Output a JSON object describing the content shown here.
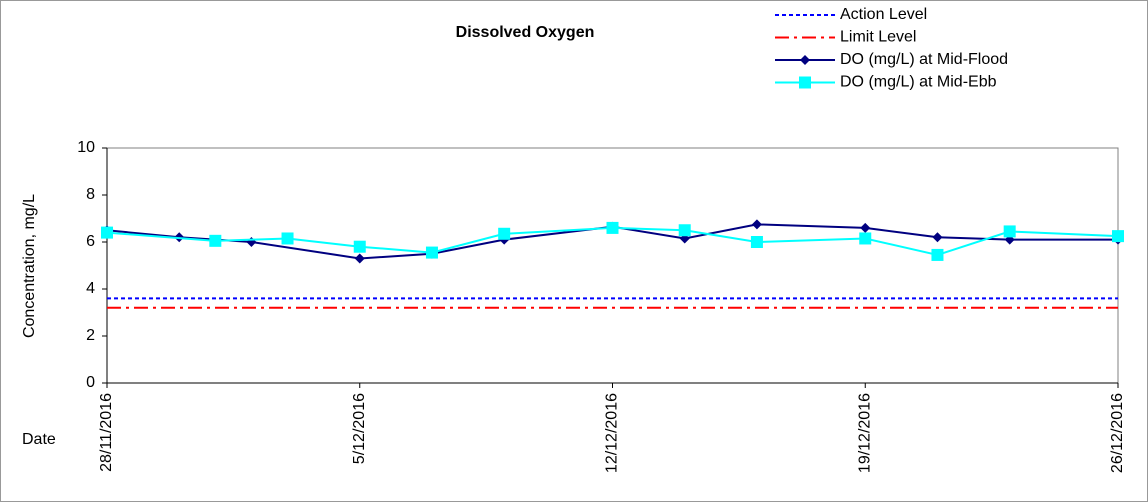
{
  "chart_data": {
    "type": "line",
    "title": "Dissolved Oxygen",
    "y_label": "Concentration, mg/L",
    "x_label": "Date",
    "xlim": [
      "28/11/2016",
      "26/12/2016"
    ],
    "xticks": [
      "28/11/2016",
      "5/12/2016",
      "12/12/2016",
      "19/12/2016",
      "26/12/2016"
    ],
    "ylim": [
      0,
      10
    ],
    "yticks": [
      0,
      2,
      4,
      6,
      8,
      10
    ],
    "series": [
      {
        "name": "Action Level",
        "color": "#0000ff",
        "linestyle": "dashed",
        "marker": "none",
        "x": [
          "28/11/2016",
          "26/12/2016"
        ],
        "values": [
          3.6,
          3.6
        ]
      },
      {
        "name": "Limit Level",
        "color": "#ff0000",
        "linestyle": "dashdot",
        "marker": "none",
        "x": [
          "28/11/2016",
          "26/12/2016"
        ],
        "values": [
          3.2,
          3.2
        ]
      },
      {
        "name": "DO (mg/L) at Mid-Flood",
        "color": "#000080",
        "linestyle": "solid",
        "marker": "diamond",
        "x": [
          "28/11/2016",
          "30/11/2016",
          "2/12/2016",
          "5/12/2016",
          "7/12/2016",
          "9/12/2016",
          "12/12/2016",
          "14/12/2016",
          "16/12/2016",
          "19/12/2016",
          "21/12/2016",
          "23/12/2016",
          "26/12/2016"
        ],
        "values": [
          6.5,
          6.2,
          6.0,
          5.3,
          5.5,
          6.1,
          6.65,
          6.15,
          6.75,
          6.6,
          6.2,
          6.1,
          6.1
        ]
      },
      {
        "name": "DO (mg/L) at Mid-Ebb",
        "color": "#00ffff",
        "linestyle": "solid",
        "marker": "square",
        "x": [
          "28/11/2016",
          "1/12/2016",
          "3/12/2016",
          "5/12/2016",
          "7/12/2016",
          "9/12/2016",
          "12/12/2016",
          "14/12/2016",
          "16/12/2016",
          "19/12/2016",
          "21/12/2016",
          "23/12/2016",
          "26/12/2016"
        ],
        "values": [
          6.4,
          6.05,
          6.15,
          5.8,
          5.55,
          6.35,
          6.6,
          6.5,
          6.0,
          6.15,
          5.45,
          6.45,
          6.25
        ]
      }
    ]
  }
}
